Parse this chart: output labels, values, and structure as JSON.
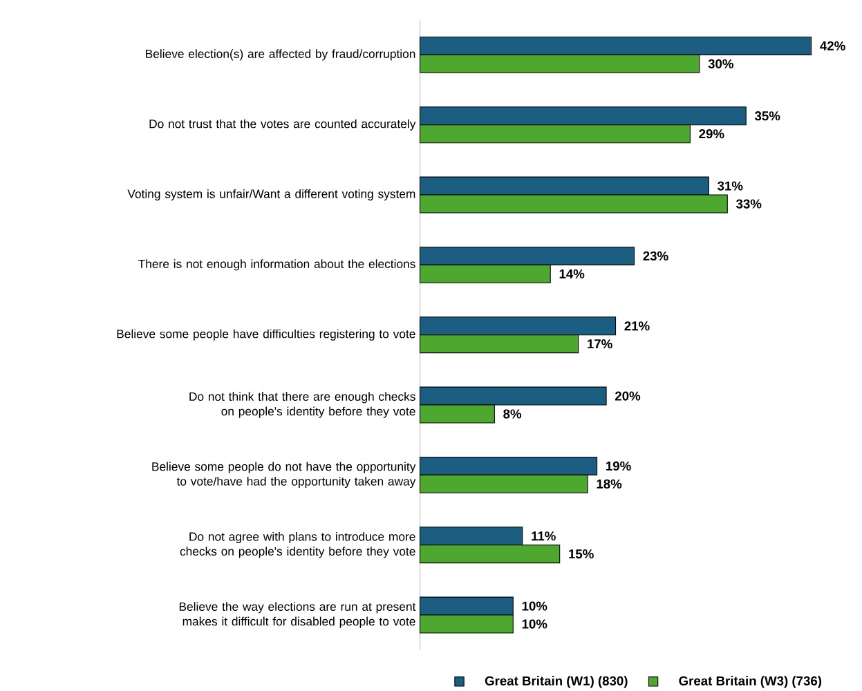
{
  "chart_data": {
    "type": "bar",
    "orientation": "horizontal",
    "legend": "bottom",
    "categories": [
      "Believe election(s) are affected by fraud/corruption",
      "Do not trust that the votes are counted accurately",
      "Voting system is unfair/Want a different voting system",
      "There is not enough information about the elections",
      "Believe some people have difficulties registering to vote",
      "Do not think that there are enough checks on people's identity before they vote",
      "Believe some people do not have the opportunity to vote/have had the opportunity taken away",
      "Do not agree with plans to introduce more checks on people's identity before they vote",
      "Believe the way elections are run at present makes it difficult for disabled people to vote"
    ],
    "series": [
      {
        "name": "Great Britain (W1) (830)",
        "color": "#1b5e82",
        "values": [
          42,
          35,
          31,
          23,
          21,
          20,
          19,
          11,
          10
        ],
        "value_labels": [
          "42%",
          "35%",
          "31%",
          "23%",
          "21%",
          "20%",
          "19%",
          "11%",
          "10%"
        ]
      },
      {
        "name": "Great Britain (W3) (736)",
        "color": "#4ea72e",
        "values": [
          30,
          29,
          33,
          14,
          17,
          8,
          18,
          15,
          10
        ],
        "value_labels": [
          "30%",
          "29%",
          "33%",
          "14%",
          "17%",
          "8%",
          "18%",
          "15%",
          "10%"
        ]
      }
    ]
  }
}
